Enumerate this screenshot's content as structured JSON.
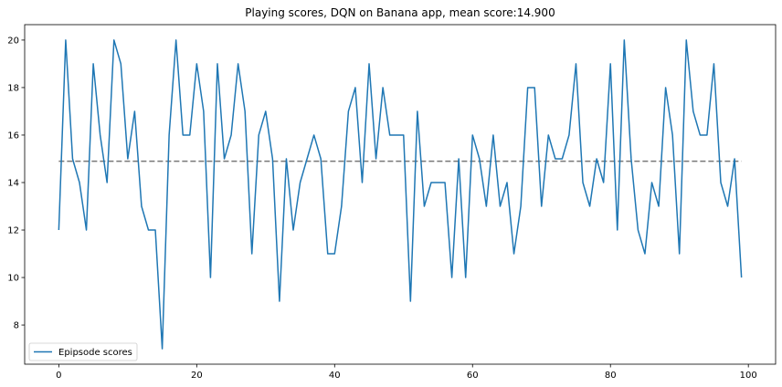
{
  "chart_data": {
    "type": "line",
    "title": "Playing scores, DQN on Banana app, mean score:14.900",
    "xlabel": "",
    "ylabel": "",
    "xlim": [
      -4.95,
      103.95
    ],
    "ylim": [
      6.35,
      20.65
    ],
    "x_ticks": [
      0,
      20,
      40,
      60,
      80,
      100
    ],
    "y_ticks": [
      8,
      10,
      12,
      14,
      16,
      18,
      20
    ],
    "legend": {
      "label": "Epipsode scores",
      "position": "lower-left"
    },
    "series": [
      {
        "name": "Epipsode scores",
        "color": "#1f77b4",
        "x": [
          0,
          1,
          2,
          3,
          4,
          5,
          6,
          7,
          8,
          9,
          10,
          11,
          12,
          13,
          14,
          15,
          16,
          17,
          18,
          19,
          20,
          21,
          22,
          23,
          24,
          25,
          26,
          27,
          28,
          29,
          30,
          31,
          32,
          33,
          34,
          35,
          36,
          37,
          38,
          39,
          40,
          41,
          42,
          43,
          44,
          45,
          46,
          47,
          48,
          49,
          50,
          51,
          52,
          53,
          54,
          55,
          56,
          57,
          58,
          59,
          60,
          61,
          62,
          63,
          64,
          65,
          66,
          67,
          68,
          69,
          70,
          71,
          72,
          73,
          74,
          75,
          76,
          77,
          78,
          79,
          80,
          81,
          82,
          83,
          84,
          85,
          86,
          87,
          88,
          89,
          90,
          91,
          92,
          93,
          94,
          95,
          96,
          97,
          98,
          99
        ],
        "values": [
          12,
          20,
          15,
          14,
          12,
          19,
          16,
          14,
          20,
          19,
          15,
          17,
          13,
          12,
          12,
          7,
          16,
          20,
          16,
          16,
          19,
          17,
          10,
          19,
          15,
          16,
          19,
          17,
          11,
          16,
          17,
          15,
          9,
          15,
          12,
          14,
          15,
          16,
          15,
          11,
          11,
          13,
          17,
          18,
          14,
          19,
          15,
          18,
          16,
          16,
          16,
          9,
          17,
          13,
          14,
          14,
          14,
          10,
          15,
          10,
          16,
          15,
          13,
          16,
          13,
          14,
          11,
          13,
          18,
          18,
          13,
          16,
          15,
          15,
          16,
          19,
          14,
          13,
          15,
          14,
          19,
          12,
          20,
          15,
          12,
          11,
          14,
          13,
          18,
          16,
          11,
          20,
          17,
          16,
          16,
          19,
          14,
          13,
          15,
          10
        ]
      }
    ],
    "mean_line": {
      "value": 14.9,
      "x_range": [
        0,
        99
      ],
      "color": "#777777",
      "style": "dashed"
    }
  }
}
